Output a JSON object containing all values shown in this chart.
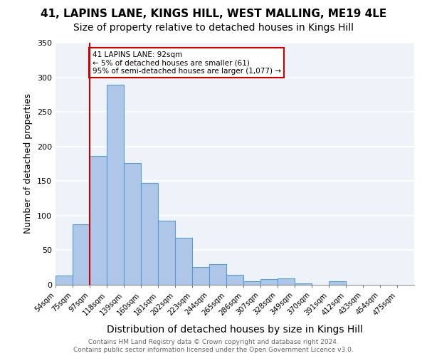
{
  "title": "41, LAPINS LANE, KINGS HILL, WEST MALLING, ME19 4LE",
  "subtitle": "Size of property relative to detached houses in Kings Hill",
  "xlabel": "Distribution of detached houses by size in Kings Hill",
  "ylabel": "Number of detached properties",
  "footnote1": "Contains HM Land Registry data © Crown copyright and database right 2024.",
  "footnote2": "Contains public sector information licensed under the Open Government Licence v3.0.",
  "bin_labels": [
    "54sqm",
    "75sqm",
    "97sqm",
    "118sqm",
    "139sqm",
    "160sqm",
    "181sqm",
    "202sqm",
    "223sqm",
    "244sqm",
    "265sqm",
    "286sqm",
    "307sqm",
    "328sqm",
    "349sqm",
    "370sqm",
    "391sqm",
    "412sqm",
    "433sqm",
    "454sqm",
    "475sqm"
  ],
  "bar_heights": [
    13,
    87,
    186,
    289,
    176,
    147,
    93,
    68,
    26,
    30,
    14,
    5,
    8,
    9,
    2,
    0,
    5,
    0,
    0,
    0
  ],
  "bar_color": "#aec6e8",
  "bar_edge_color": "#5a9fd4",
  "vline_x": 2.0,
  "vline_color": "#cc0000",
  "annotation_text": "41 LAPINS LANE: 92sqm\n← 5% of detached houses are smaller (61)\n95% of semi-detached houses are larger (1,077) →",
  "annotation_box_color": "#cc0000",
  "annotation_text_color": "#000000",
  "ylim": [
    0,
    350
  ],
  "yticks": [
    0,
    50,
    100,
    150,
    200,
    250,
    300,
    350
  ],
  "background_color": "#eef2f9",
  "grid_color": "#ffffff",
  "title_fontsize": 11,
  "subtitle_fontsize": 10,
  "ylabel_fontsize": 9,
  "xlabel_fontsize": 10
}
